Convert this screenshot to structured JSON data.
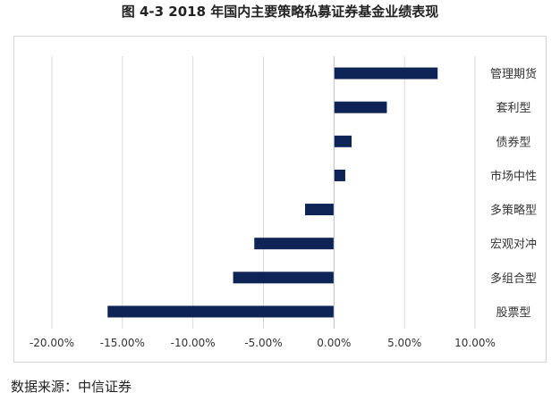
{
  "figure": {
    "title": "图 4-3 2018 年国内主要策略私募证券基金业绩表现",
    "source": "数据来源：中信证券"
  },
  "chart_data": {
    "type": "bar",
    "orientation": "horizontal",
    "title": "图 4-3 2018 年国内主要策略私募证券基金业绩表现",
    "xlabel": "",
    "ylabel": "",
    "categories": [
      "管理期货",
      "套利型",
      "债券型",
      "市场中性",
      "多策略型",
      "宏观对冲",
      "多组合型",
      "股票型"
    ],
    "values": [
      7.35,
      3.75,
      1.25,
      0.8,
      -2.05,
      -5.65,
      -7.15,
      -16.05
    ],
    "xlim": [
      -20,
      10
    ],
    "xticks": [
      -20,
      -15,
      -10,
      -5,
      0,
      5,
      10
    ],
    "xtick_labels": [
      "-20.00%",
      "-15.00%",
      "-10.00%",
      "-5.00%",
      "0.00%",
      "5.00%",
      "10.00%"
    ],
    "unit": "%",
    "grid": "vertical",
    "legend": "none",
    "bar_color": "#0f2456",
    "grid_color": "#d9d9d9",
    "axis_color": "#bfbfbf"
  }
}
